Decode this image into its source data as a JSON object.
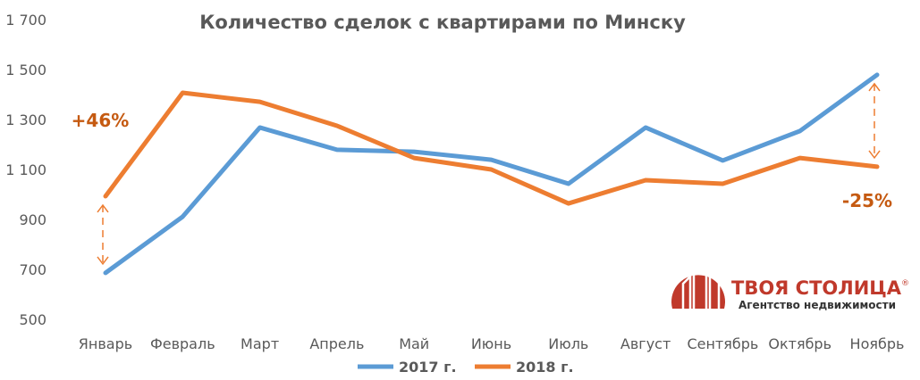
{
  "chart_data": {
    "type": "line",
    "title": "Количество сделок с квартирами по Минску",
    "xlabel": "",
    "ylabel": "",
    "categories": [
      "Январь",
      "Февраль",
      "Март",
      "Апрель",
      "Май",
      "Июнь",
      "Июль",
      "Август",
      "Сентябрь",
      "Октябрь",
      "Ноябрь"
    ],
    "ylim": [
      500,
      1700
    ],
    "yticks": [
      "500",
      "700",
      "900",
      "1 100",
      "1 300",
      "1 500",
      "1 700"
    ],
    "ytick_values": [
      500,
      700,
      900,
      1100,
      1300,
      1500,
      1700
    ],
    "grid": false,
    "legend_position": "bottom",
    "series": [
      {
        "name": "2017 г.",
        "color": "#5b9bd5",
        "values": [
          686,
          911,
          1268,
          1179,
          1171,
          1139,
          1043,
          1268,
          1136,
          1254,
          1479
        ]
      },
      {
        "name": "2018 г.",
        "color": "#ed7d31",
        "values": [
          993,
          1407,
          1371,
          1275,
          1146,
          1100,
          964,
          1057,
          1043,
          1146,
          1111
        ]
      }
    ],
    "annotations": [
      {
        "text": "+46%",
        "category": "Январь"
      },
      {
        "text": "-25%",
        "category": "Ноябрь"
      }
    ]
  },
  "logo": {
    "name": "ТВОЯ СТОЛИЦА",
    "registered": "®",
    "tagline": "Агентство недвижимости",
    "color": "#c0392b"
  }
}
